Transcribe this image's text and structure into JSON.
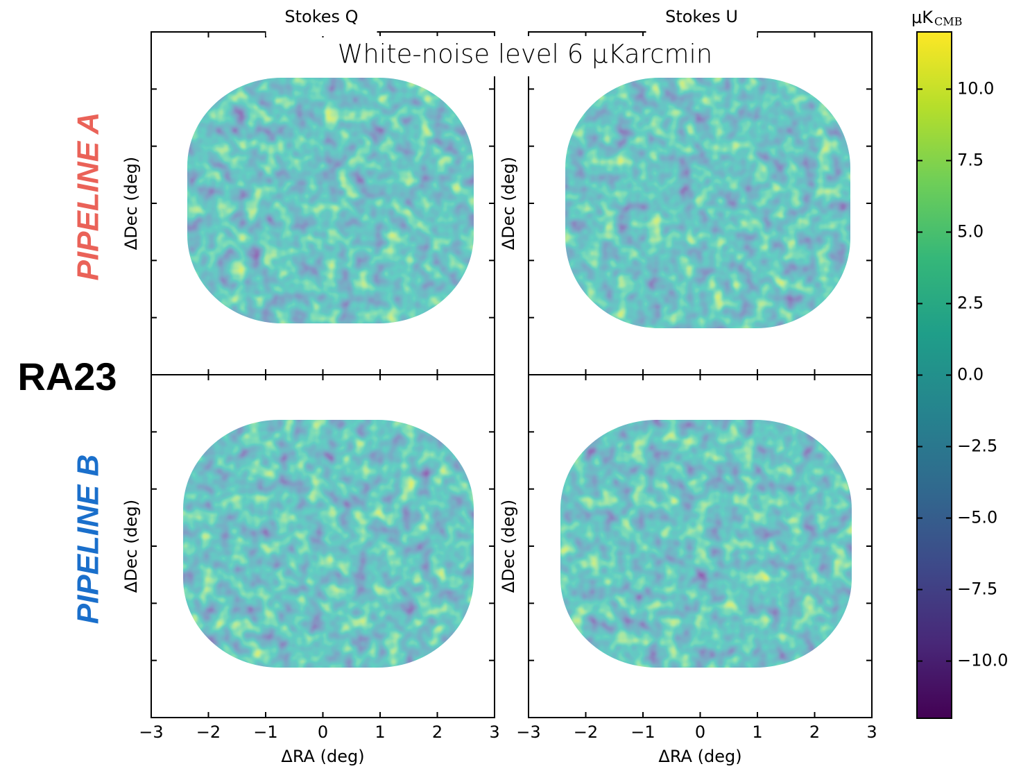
{
  "chart_data": {
    "type": "map",
    "title": "White-noise level 6 μKarcmin",
    "column_titles": [
      "Stokes Q",
      "Stokes U"
    ],
    "row_labels": [
      "PIPELINE A",
      "PIPELINE B"
    ],
    "row_label_colors": [
      "#ea6258",
      "#1a6fcb"
    ],
    "side_label": "RA23",
    "xlabel": "ΔRA (deg)",
    "ylabel": "ΔDec (deg)",
    "xlim": [
      -3,
      3
    ],
    "xticks": [
      {
        "value": -3,
        "label": "−3"
      },
      {
        "value": -2,
        "label": "−2"
      },
      {
        "value": -1,
        "label": "−1"
      },
      0,
      1,
      2,
      3
    ],
    "colorbar": {
      "label": "μK",
      "label_sub": "CMB",
      "colormap": "viridis",
      "lim": [
        -12,
        12
      ],
      "ticks": [
        {
          "value": 10,
          "label": "10.0"
        },
        {
          "value": 7.5,
          "label": "7.5"
        },
        {
          "value": 5,
          "label": "5.0"
        },
        {
          "value": 2.5,
          "label": "2.5"
        },
        {
          "value": 0,
          "label": "0.0"
        },
        {
          "value": -2.5,
          "label": "−2.5"
        },
        {
          "value": -5,
          "label": "−5.0"
        },
        {
          "value": -7.5,
          "label": "−7.5"
        },
        {
          "value": -10,
          "label": "−10.0"
        }
      ]
    }
  }
}
